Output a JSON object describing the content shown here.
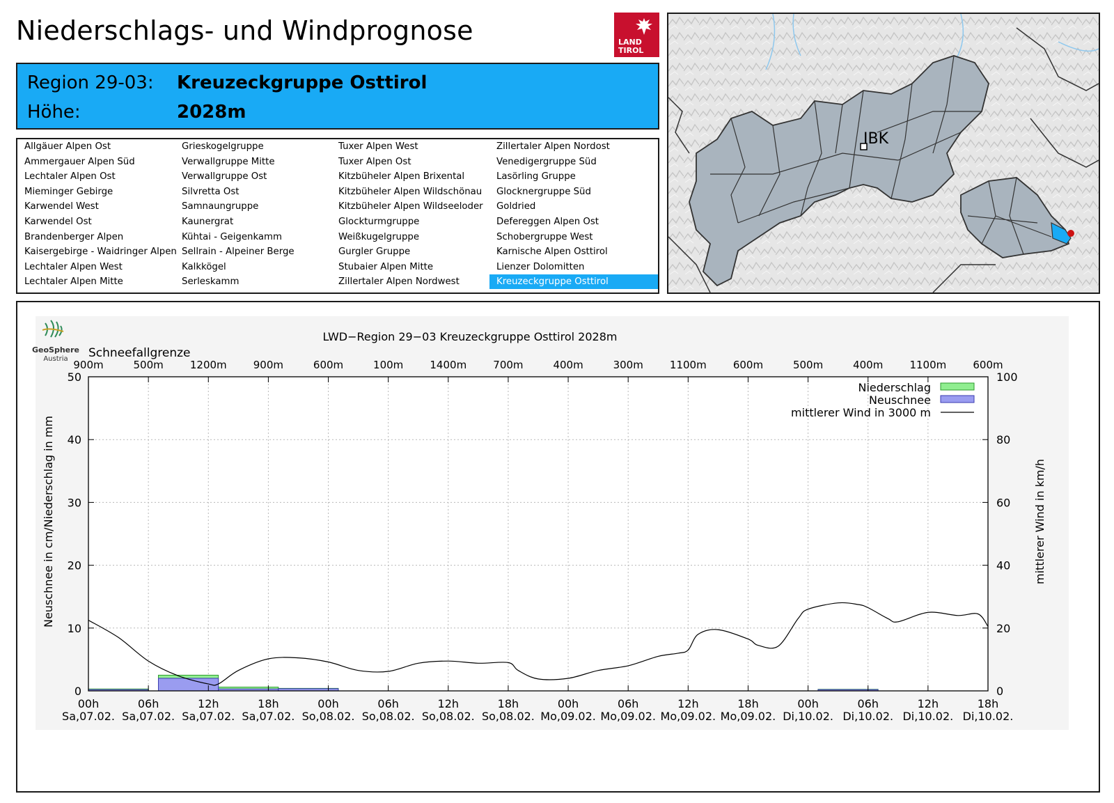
{
  "header": {
    "title": "Niederschlags- und Windprognose",
    "region_label": "Region 29-03:",
    "region_value": "Kreuzeckgruppe Osttirol",
    "height_label": "Höhe:",
    "height_value": "2028m"
  },
  "logo": {
    "line1": "LAND",
    "line2": "TIROL"
  },
  "regions": [
    [
      "Allgäuer Alpen Ost",
      "Ammergauer Alpen Süd",
      "Lechtaler Alpen Ost",
      "Mieminger Gebirge",
      "Karwendel West",
      "Karwendel Ost",
      "Brandenberger Alpen",
      "Kaisergebirge - Waidringer Alpen",
      "Lechtaler Alpen West",
      "Lechtaler Alpen Mitte"
    ],
    [
      "Grieskogelgruppe",
      "Verwallgruppe Mitte",
      "Verwallgruppe Ost",
      "Silvretta Ost",
      "Samnaungruppe",
      "Kaunergrat",
      "Kühtai - Geigenkamm",
      "Sellrain - Alpeiner Berge",
      "Kalkkögel",
      "Serleskamm"
    ],
    [
      "Tuxer Alpen West",
      "Tuxer Alpen Ost",
      "Kitzbüheler Alpen Brixental",
      "Kitzbüheler Alpen Wildschönau",
      "Kitzbüheler Alpen Wildseeloder",
      "Glockturmgruppe",
      "Weißkugelgruppe",
      "Gurgler Gruppe",
      "Stubaier Alpen Mitte",
      "Zillertaler Alpen Nordwest"
    ],
    [
      "Zillertaler Alpen Nordost",
      "Venedigergruppe Süd",
      "Lasörling Gruppe",
      "Glocknergruppe Süd",
      "Goldried",
      "Defereggen Alpen Ost",
      "Schobergruppe West",
      "Karnische Alpen Osttirol",
      "Lienzer Dolomitten",
      "Kreuzeckgruppe Osttirol"
    ]
  ],
  "selected_region": "Kreuzeckgruppe Osttirol",
  "map": {
    "city_label": "IBK"
  },
  "branding": {
    "name": "GeoSphere",
    "sub": "Austria"
  },
  "chart_data": {
    "type": "bar+line",
    "title": "LWD−Region 29−03 Kreuzeckgruppe Osttirol 2028m",
    "ylabel_left": "Neuschnee in cm/Niederschlag in mm",
    "ylabel_right": "mittlerer Wind in km/h",
    "ylim_left": [
      0,
      50
    ],
    "ylim_right": [
      0,
      100
    ],
    "yticks_left": [
      "0",
      "10",
      "20",
      "30",
      "40",
      "50"
    ],
    "yticks_right": [
      "0",
      "20",
      "40",
      "60",
      "80",
      "100"
    ],
    "x_range_hours": [
      0,
      90
    ],
    "x_ticks": [
      {
        "h": 0,
        "time": "00h",
        "date": "Sa,07.02."
      },
      {
        "h": 6,
        "time": "06h",
        "date": "Sa,07.02."
      },
      {
        "h": 12,
        "time": "12h",
        "date": "Sa,07.02."
      },
      {
        "h": 18,
        "time": "18h",
        "date": "Sa,07.02."
      },
      {
        "h": 24,
        "time": "00h",
        "date": "So,08.02."
      },
      {
        "h": 30,
        "time": "06h",
        "date": "So,08.02."
      },
      {
        "h": 36,
        "time": "12h",
        "date": "So,08.02."
      },
      {
        "h": 42,
        "time": "18h",
        "date": "So,08.02."
      },
      {
        "h": 48,
        "time": "00h",
        "date": "Mo,09.02."
      },
      {
        "h": 54,
        "time": "06h",
        "date": "Mo,09.02."
      },
      {
        "h": 60,
        "time": "12h",
        "date": "Mo,09.02."
      },
      {
        "h": 66,
        "time": "18h",
        "date": "Mo,09.02."
      },
      {
        "h": 72,
        "time": "00h",
        "date": "Di,10.02."
      },
      {
        "h": 78,
        "time": "06h",
        "date": "Di,10.02."
      },
      {
        "h": 84,
        "time": "12h",
        "date": "Di,10.02."
      },
      {
        "h": 90,
        "time": "18h",
        "date": "Di,10.02."
      }
    ],
    "snowline_title": "Schneefallgrenze",
    "snowline": [
      {
        "h": 0,
        "label": "900m"
      },
      {
        "h": 6,
        "label": "500m"
      },
      {
        "h": 12,
        "label": "1200m"
      },
      {
        "h": 18,
        "label": "900m"
      },
      {
        "h": 24,
        "label": "600m"
      },
      {
        "h": 30,
        "label": "100m"
      },
      {
        "h": 36,
        "label": "1400m"
      },
      {
        "h": 42,
        "label": "700m"
      },
      {
        "h": 48,
        "label": "400m"
      },
      {
        "h": 54,
        "label": "300m"
      },
      {
        "h": 60,
        "label": "1100m"
      },
      {
        "h": 66,
        "label": "600m"
      },
      {
        "h": 72,
        "label": "500m"
      },
      {
        "h": 78,
        "label": "400m"
      },
      {
        "h": 84,
        "label": "1100m"
      },
      {
        "h": 90,
        "label": "600m"
      }
    ],
    "legend": {
      "precip": "Niederschlag",
      "snow": "Neuschnee",
      "wind": "mittlerer Wind in 3000 m",
      "precip_color": "#90ee90",
      "snow_color": "#9a9cf0"
    },
    "precipitation": [
      {
        "start": 0,
        "end": 6,
        "value": 0.3
      },
      {
        "start": 7,
        "end": 13,
        "value": 2.5
      },
      {
        "start": 13,
        "end": 19,
        "value": 0.6
      },
      {
        "start": 19,
        "end": 25,
        "value": 0.4
      },
      {
        "start": 73,
        "end": 79,
        "value": 0.25
      }
    ],
    "new_snow": [
      {
        "start": 0,
        "end": 6,
        "value": 0.2
      },
      {
        "start": 7,
        "end": 13,
        "value": 2.0
      },
      {
        "start": 13,
        "end": 19,
        "value": 0.3
      },
      {
        "start": 19,
        "end": 25,
        "value": 0.35
      },
      {
        "start": 73,
        "end": 79,
        "value": 0.2
      }
    ],
    "wind": {
      "hours": [
        0,
        3,
        6,
        9,
        12,
        13,
        15,
        18,
        21,
        24,
        27,
        30,
        33,
        36,
        39,
        42,
        43,
        45,
        48,
        51,
        54,
        57,
        59,
        60,
        61,
        63,
        66,
        67,
        69,
        71,
        72,
        75,
        77,
        78,
        80,
        81,
        84,
        87,
        89,
        90
      ],
      "values": [
        22.5,
        17,
        9.5,
        4.8,
        2.2,
        2.2,
        6.5,
        10.2,
        10.5,
        9.2,
        6.5,
        6.2,
        8.8,
        9.5,
        8.8,
        9,
        6.5,
        3.8,
        4,
        6.5,
        8,
        11,
        12,
        13,
        18,
        19.5,
        16.5,
        14.5,
        14.2,
        23,
        26,
        28,
        27.5,
        26.5,
        23,
        22,
        25,
        24,
        24.5,
        20.5
      ]
    }
  }
}
